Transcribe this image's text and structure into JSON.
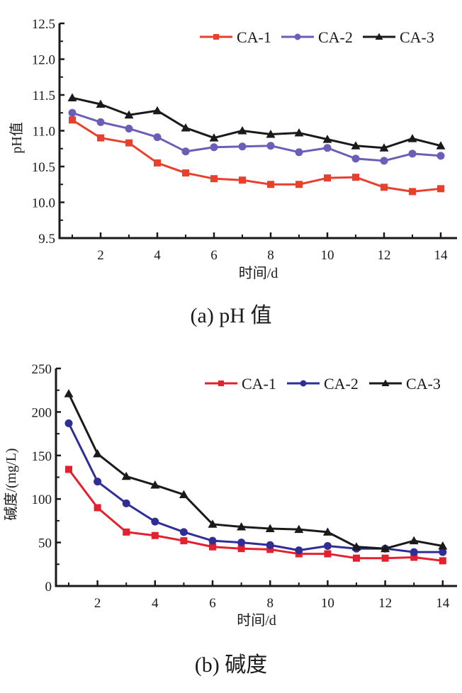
{
  "chart_data": [
    {
      "type": "line",
      "caption": "(a) pH 值",
      "title": "",
      "xlabel": "时间/d",
      "ylabel": "pH值",
      "x": [
        1,
        2,
        3,
        4,
        5,
        6,
        7,
        8,
        9,
        10,
        11,
        12,
        13,
        14
      ],
      "xticks": [
        2,
        4,
        6,
        8,
        10,
        12,
        14
      ],
      "xlim": [
        0.5,
        15
      ],
      "ylim": [
        9.5,
        12.5
      ],
      "yticks": [
        9.5,
        10.0,
        10.5,
        11.0,
        11.5,
        12.0,
        12.5
      ],
      "ytick_labels": [
        "9.5",
        "10.0",
        "10.5",
        "11.0",
        "11.5",
        "12.0",
        "12.5"
      ],
      "grid": false,
      "legend_position": "top-right",
      "series": [
        {
          "name": "CA-1",
          "marker": "square",
          "color": "#e8402c",
          "values": [
            11.15,
            10.9,
            10.83,
            10.55,
            10.41,
            10.33,
            10.31,
            10.25,
            10.25,
            10.34,
            10.35,
            10.21,
            10.15,
            10.19
          ]
        },
        {
          "name": "CA-2",
          "marker": "circle",
          "color": "#6a5fb8",
          "values": [
            11.25,
            11.12,
            11.03,
            10.91,
            10.71,
            10.77,
            10.78,
            10.79,
            10.7,
            10.76,
            10.61,
            10.58,
            10.68,
            10.65
          ]
        },
        {
          "name": "CA-3",
          "marker": "triangle",
          "color": "#1a1a1a",
          "values": [
            11.46,
            11.37,
            11.22,
            11.28,
            11.04,
            10.9,
            11.0,
            10.95,
            10.97,
            10.88,
            10.79,
            10.76,
            10.89,
            10.79
          ]
        }
      ]
    },
    {
      "type": "line",
      "caption": "(b) 碱度",
      "title": "",
      "xlabel": "时间/d",
      "ylabel": "碱度/(mg/L)",
      "x": [
        1,
        2,
        3,
        4,
        5,
        6,
        7,
        8,
        9,
        10,
        11,
        12,
        13,
        14
      ],
      "xticks": [
        2,
        4,
        6,
        8,
        10,
        12,
        14
      ],
      "xlim": [
        0.5,
        15
      ],
      "ylim": [
        0,
        250
      ],
      "yticks": [
        0,
        50,
        100,
        150,
        200,
        250
      ],
      "ytick_labels": [
        "0",
        "50",
        "100",
        "150",
        "200",
        "250"
      ],
      "grid": false,
      "legend_position": "top-right",
      "series": [
        {
          "name": "CA-1",
          "marker": "square",
          "color": "#e3202e",
          "values": [
            134,
            90,
            62,
            58,
            52,
            45,
            43,
            42,
            37,
            37,
            32,
            32,
            33,
            29
          ]
        },
        {
          "name": "CA-2",
          "marker": "circle",
          "color": "#2e2e96",
          "values": [
            187,
            120,
            95,
            74,
            62,
            52,
            50,
            47,
            41,
            46,
            43,
            43,
            39,
            39
          ]
        },
        {
          "name": "CA-3",
          "marker": "triangle",
          "color": "#1a1a1a",
          "values": [
            221,
            152,
            126,
            116,
            105,
            71,
            68,
            66,
            65,
            62,
            45,
            43,
            52,
            46
          ]
        }
      ]
    }
  ]
}
